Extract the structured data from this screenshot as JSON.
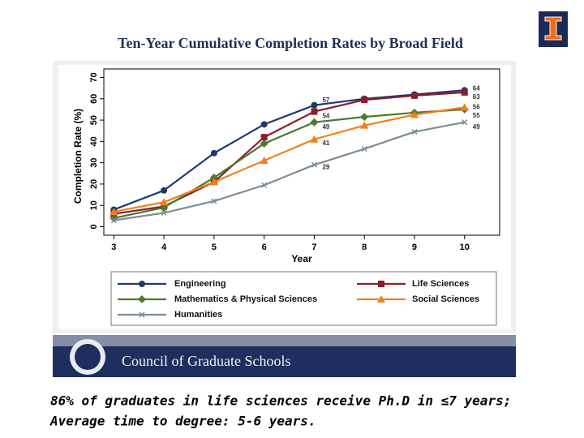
{
  "chart_data": {
    "type": "line",
    "title": "Ten-Year Cumulative Completion Rates by Broad Field",
    "x_label": "Year",
    "y_label": "Completion Rate (%)",
    "x": [
      3,
      4,
      5,
      6,
      7,
      8,
      9,
      10
    ],
    "xlim": [
      2.8,
      10.7
    ],
    "xticks": [
      3,
      4,
      5,
      6,
      7,
      8,
      9,
      10
    ],
    "ylim": [
      -4,
      74
    ],
    "yticks": [
      0,
      10,
      20,
      30,
      40,
      50,
      60,
      70
    ],
    "series": [
      {
        "name": "Engineering",
        "color": "#1c3a6e",
        "marker": "circle",
        "values": [
          8,
          17,
          34.5,
          48,
          57,
          60,
          62,
          64
        ]
      },
      {
        "name": "Life Sciences",
        "color": "#8c1c2e",
        "marker": "square",
        "values": [
          6,
          9.5,
          21,
          42,
          54,
          59.5,
          61.5,
          63
        ]
      },
      {
        "name": "Mathematics & Physical Sciences",
        "color": "#4a7a2a",
        "marker": "diamond",
        "values": [
          4,
          9,
          23,
          39,
          49,
          51.5,
          53.5,
          55
        ]
      },
      {
        "name": "Social Sciences",
        "color": "#f08020",
        "marker": "triangle",
        "values": [
          7,
          11.5,
          21,
          31,
          41,
          47.5,
          52.5,
          56
        ]
      },
      {
        "name": "Humanities",
        "color": "#7b8d97",
        "marker": "x",
        "values": [
          3,
          6.5,
          12,
          19.5,
          29,
          36.5,
          44.5,
          49
        ]
      }
    ]
  },
  "footer": {
    "text": "Council of Graduate Schools"
  },
  "caption": [
    "86% of graduates in life sciences receive Ph.D in ≤7 years;",
    "Average time to degree: 5-6 years."
  ]
}
